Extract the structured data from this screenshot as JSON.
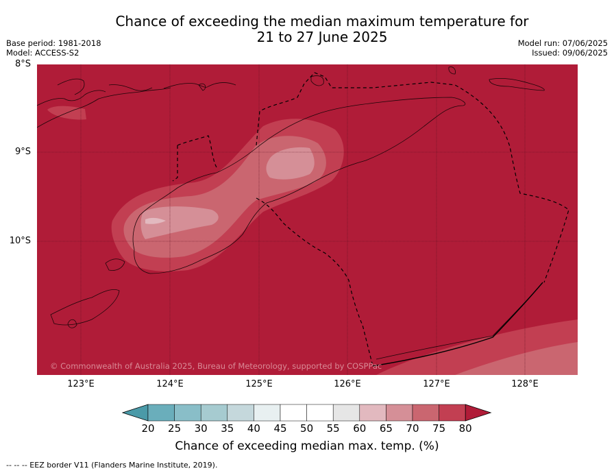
{
  "title": {
    "line1": "Chance of exceeding the median maximum temperature for",
    "line2": "21 to 27 June 2025"
  },
  "meta_left": {
    "base_period": "Base period: 1981-2018",
    "model": "Model: ACCESS-S2"
  },
  "meta_right": {
    "model_run": "Model run: 07/06/2025",
    "issued": "Issued: 09/06/2025"
  },
  "map": {
    "lat_labels": [
      "8°S",
      "9°S",
      "10°S"
    ],
    "lon_labels": [
      "123°E",
      "124°E",
      "125°E",
      "126°E",
      "127°E",
      "128°E"
    ],
    "copyright": "© Commonwealth of Australia 2025, Bureau of Meteorology, supported by COSPPac",
    "colors": {
      "over_80": "#b01c38",
      "75_80": "#c23f52",
      "70_75": "#ca6670",
      "65_70": "#d58f97",
      "60_65": "#e2b9bf"
    }
  },
  "colorbar": {
    "ticks": [
      "20",
      "25",
      "30",
      "35",
      "40",
      "45",
      "50",
      "55",
      "60",
      "65",
      "70",
      "75",
      "80"
    ],
    "colors": [
      "#4a9aa8",
      "#6aaebb",
      "#89bec8",
      "#a6cbd0",
      "#c5d8dc",
      "#e8f0f1",
      "#ffffff",
      "#ffffff",
      "#e6e6e6",
      "#e2b9bf",
      "#d58f97",
      "#ca6670",
      "#c23f52",
      "#b01c38"
    ],
    "label": "Chance of exceeding median max. temp. (%)"
  },
  "footnote": "--  --  -- EEZ border V11 (Flanders Marine Institute, 2019)."
}
